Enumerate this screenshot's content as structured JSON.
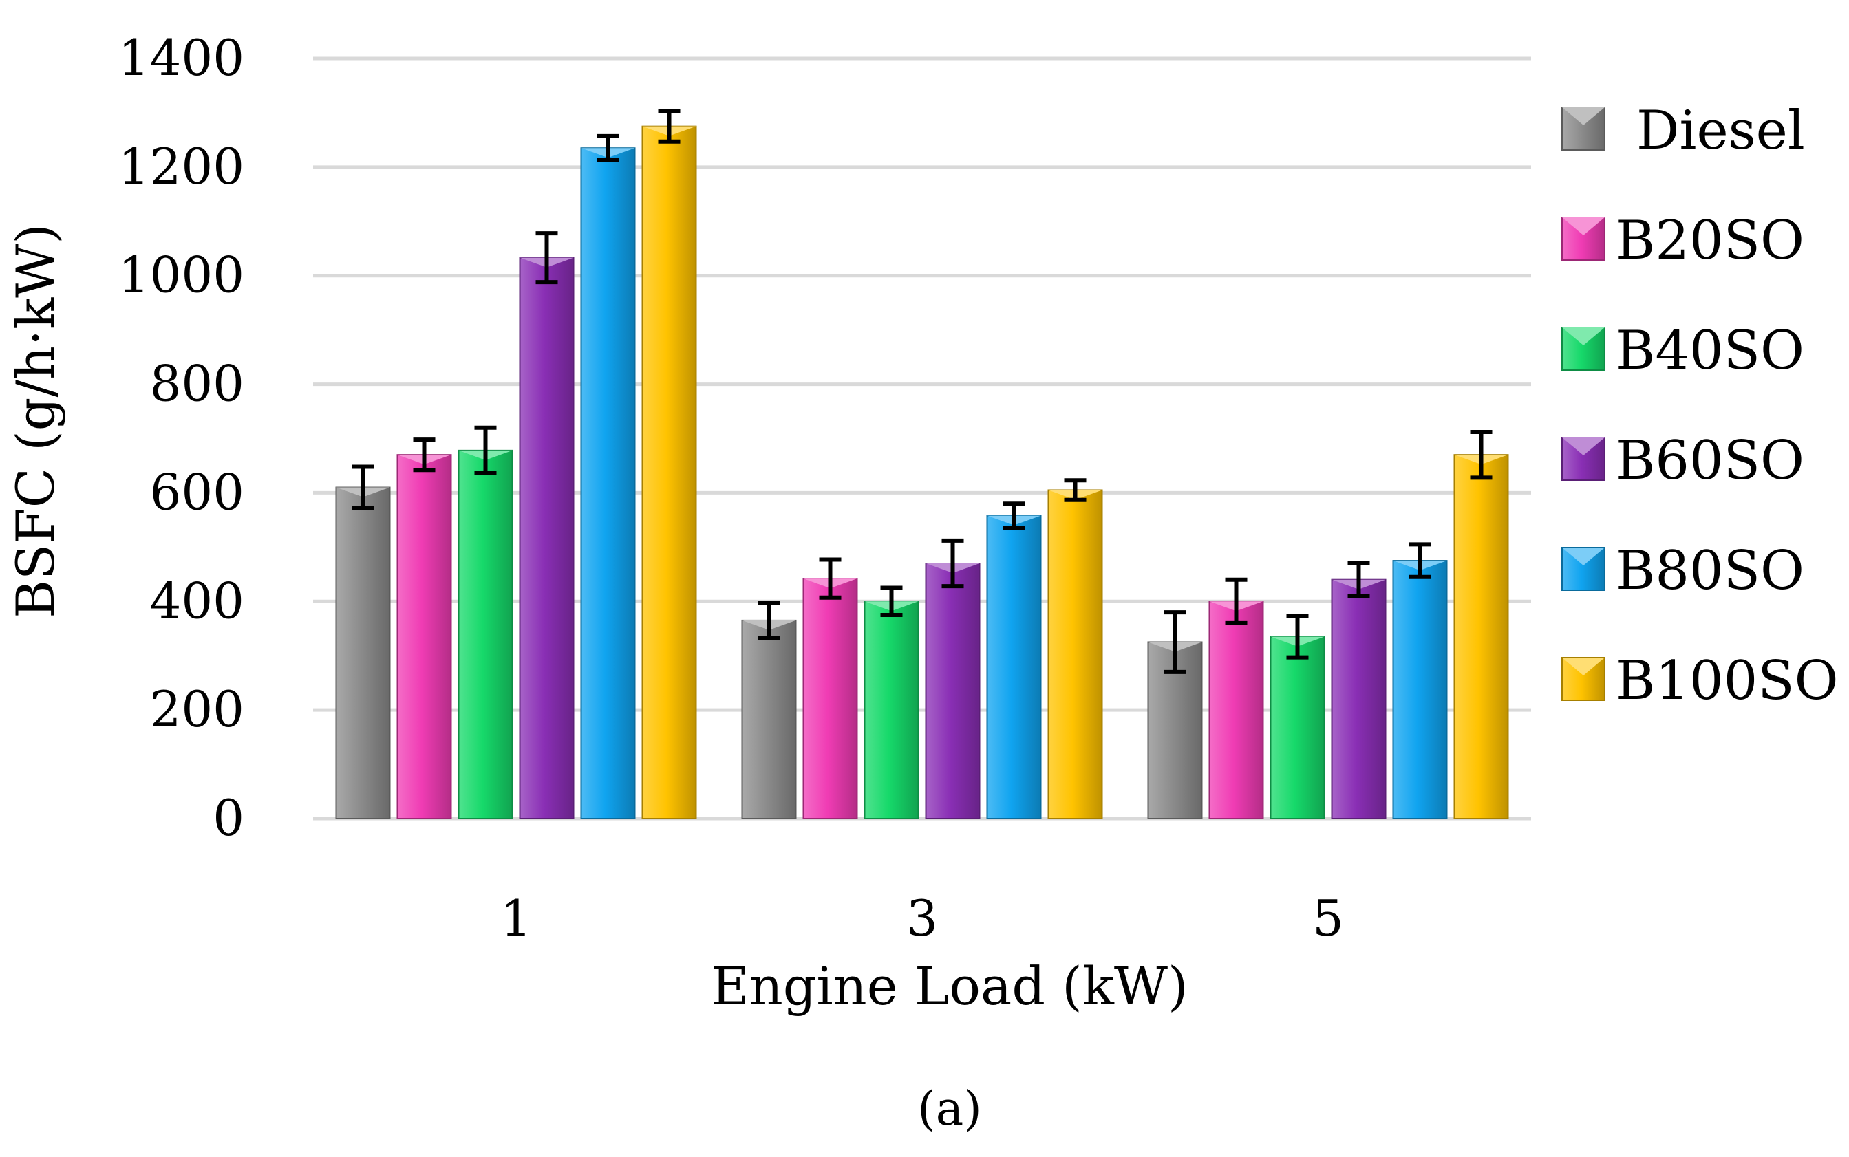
{
  "chart_data": {
    "type": "bar",
    "categories": [
      "1",
      "3",
      "5"
    ],
    "series": [
      {
        "name": "Diesel",
        "color": "#8c8c8c",
        "values": [
          610,
          365,
          325
        ],
        "errors": [
          38,
          32,
          55
        ]
      },
      {
        "name": "B20SO",
        "color": "#f03cb4",
        "values": [
          670,
          442,
          400
        ],
        "errors": [
          28,
          35,
          40
        ]
      },
      {
        "name": "B40SO",
        "color": "#16d96a",
        "values": [
          678,
          400,
          335
        ],
        "errors": [
          42,
          25,
          38
        ]
      },
      {
        "name": "B60SO",
        "color": "#8a2fb5",
        "values": [
          1033,
          470,
          440
        ],
        "errors": [
          45,
          42,
          30
        ]
      },
      {
        "name": "B80SO",
        "color": "#10a4f0",
        "values": [
          1235,
          558,
          475
        ],
        "errors": [
          22,
          22,
          30
        ]
      },
      {
        "name": "B100SO",
        "color": "#ffc300",
        "values": [
          1275,
          605,
          670
        ],
        "errors": [
          28,
          18,
          42
        ]
      }
    ],
    "xlabel": "Engine Load (kW)",
    "ylabel": "BSFC (g/h·kW)",
    "ylim": [
      0,
      1400
    ],
    "yticks": [
      "0",
      "200",
      "400",
      "600",
      "800",
      "1000",
      "1200",
      "1400"
    ],
    "grid": true,
    "legend": "right",
    "caption": "(a)"
  }
}
